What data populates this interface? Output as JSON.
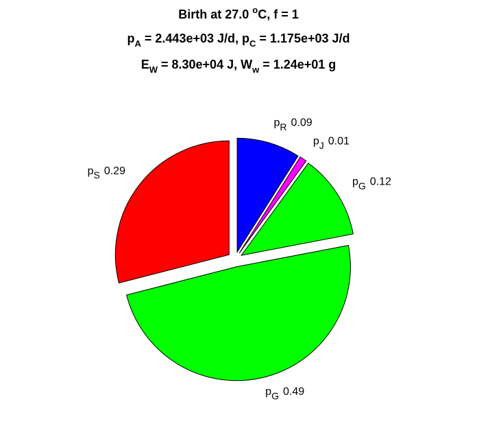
{
  "chart_data": {
    "type": "pie",
    "title": [
      [
        {
          "text": "Birth at 27.0 "
        },
        {
          "text": "o",
          "shift": "sup"
        },
        {
          "text": "C, f = 1"
        }
      ],
      [
        {
          "text": "p"
        },
        {
          "text": "A",
          "shift": "sub"
        },
        {
          "text": " = 2.443e+03 J/d, p"
        },
        {
          "text": "C",
          "shift": "sub"
        },
        {
          "text": " = 1.175e+03 J/d"
        }
      ],
      [
        {
          "text": "E"
        },
        {
          "text": "W",
          "shift": "sub"
        },
        {
          "text": " = 8.30e+04 J, W"
        },
        {
          "text": "w",
          "shift": "sub"
        },
        {
          "text": " = 1.24e+01 g"
        }
      ]
    ],
    "categories": [
      [
        {
          "text": "p"
        },
        {
          "text": "R",
          "shift": "sub"
        }
      ],
      [
        {
          "text": "p"
        },
        {
          "text": "J",
          "shift": "sub"
        }
      ],
      [
        {
          "text": "p"
        },
        {
          "text": "G",
          "shift": "sub"
        }
      ],
      [
        {
          "text": "p"
        },
        {
          "text": "G",
          "shift": "sub"
        }
      ],
      [
        {
          "text": "p"
        },
        {
          "text": "S",
          "shift": "sub"
        }
      ]
    ],
    "values": [
      0.09,
      0.01,
      0.12,
      0.49,
      0.29
    ],
    "colors": [
      "#0000ff",
      "#ff00ff",
      "#00ff00",
      "#00ff00",
      "#ff0000"
    ],
    "exploded": true
  }
}
